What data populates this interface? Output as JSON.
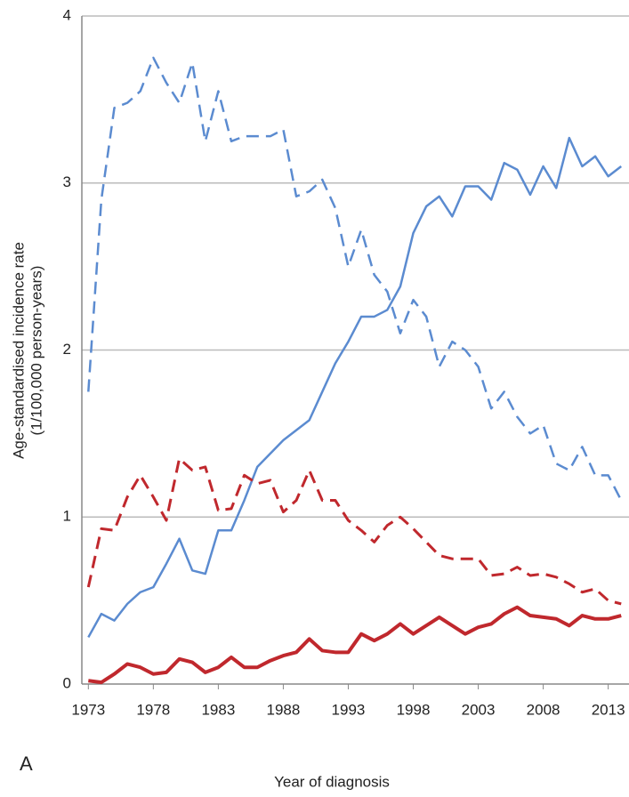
{
  "chart_data": {
    "type": "line",
    "ylabel": [
      "Age-standardised incidence rate",
      "(1/100,000 person-years)"
    ],
    "xlabel": "Year of diagnosis",
    "panel_label": "A",
    "x": [
      1973,
      1974,
      1975,
      1976,
      1977,
      1978,
      1979,
      1980,
      1981,
      1982,
      1983,
      1984,
      1985,
      1986,
      1987,
      1988,
      1989,
      1990,
      1991,
      1992,
      1993,
      1994,
      1995,
      1996,
      1997,
      1998,
      1999,
      2000,
      2001,
      2002,
      2003,
      2004,
      2005,
      2006,
      2007,
      2008,
      2009,
      2010,
      2011,
      2012,
      2013,
      2014
    ],
    "series": [
      {
        "color": "#5b8bd0",
        "linestyle": "dashed",
        "width": 2.5,
        "values": [
          1.75,
          2.9,
          3.45,
          3.48,
          3.55,
          3.75,
          3.6,
          3.48,
          3.72,
          3.25,
          3.55,
          3.25,
          3.28,
          3.28,
          3.28,
          3.32,
          2.92,
          2.95,
          3.02,
          2.85,
          2.5,
          2.72,
          2.45,
          2.35,
          2.1,
          2.3,
          2.2,
          1.9,
          2.05,
          2.0,
          1.9,
          1.65,
          1.75,
          1.6,
          1.5,
          1.55,
          1.32,
          1.28,
          1.42,
          1.25,
          1.25,
          1.1
        ]
      },
      {
        "color": "#5b8bd0",
        "linestyle": "solid",
        "width": 2.5,
        "values": [
          0.28,
          0.42,
          0.38,
          0.48,
          0.55,
          0.58,
          0.72,
          0.87,
          0.68,
          0.66,
          0.92,
          0.92,
          1.1,
          1.3,
          1.38,
          1.46,
          1.52,
          1.58,
          1.75,
          1.92,
          2.05,
          2.2,
          2.2,
          2.24,
          2.38,
          2.7,
          2.86,
          2.92,
          2.8,
          2.98,
          2.98,
          2.9,
          3.12,
          3.08,
          2.93,
          3.1,
          2.97,
          3.27,
          3.1,
          3.16,
          3.04,
          3.1
        ]
      },
      {
        "color": "#c0282d",
        "linestyle": "dashed",
        "width": 3,
        "values": [
          0.58,
          0.93,
          0.92,
          1.12,
          1.25,
          1.12,
          0.98,
          1.35,
          1.28,
          1.3,
          1.04,
          1.05,
          1.25,
          1.2,
          1.22,
          1.03,
          1.1,
          1.28,
          1.1,
          1.1,
          0.98,
          0.92,
          0.85,
          0.95,
          1.0,
          0.93,
          0.85,
          0.77,
          0.75,
          0.75,
          0.75,
          0.65,
          0.66,
          0.7,
          0.65,
          0.66,
          0.64,
          0.6,
          0.55,
          0.57,
          0.5,
          0.48
        ]
      },
      {
        "color": "#c0282d",
        "linestyle": "solid",
        "width": 4,
        "values": [
          0.02,
          0.01,
          0.06,
          0.12,
          0.1,
          0.06,
          0.07,
          0.15,
          0.13,
          0.07,
          0.1,
          0.16,
          0.1,
          0.1,
          0.14,
          0.17,
          0.19,
          0.27,
          0.2,
          0.19,
          0.19,
          0.3,
          0.26,
          0.3,
          0.36,
          0.3,
          0.35,
          0.4,
          0.35,
          0.3,
          0.34,
          0.36,
          0.42,
          0.46,
          0.41,
          0.4,
          0.39,
          0.35,
          0.41,
          0.39,
          0.39,
          0.41
        ]
      }
    ],
    "xlim": [
      1972.5,
      2014.6
    ],
    "xticks": [
      1973,
      1978,
      1983,
      1988,
      1993,
      1998,
      2003,
      2008,
      2013
    ],
    "ylim": [
      0,
      4
    ],
    "yticks": [
      0,
      1,
      2,
      3,
      4
    ],
    "grid": true
  }
}
